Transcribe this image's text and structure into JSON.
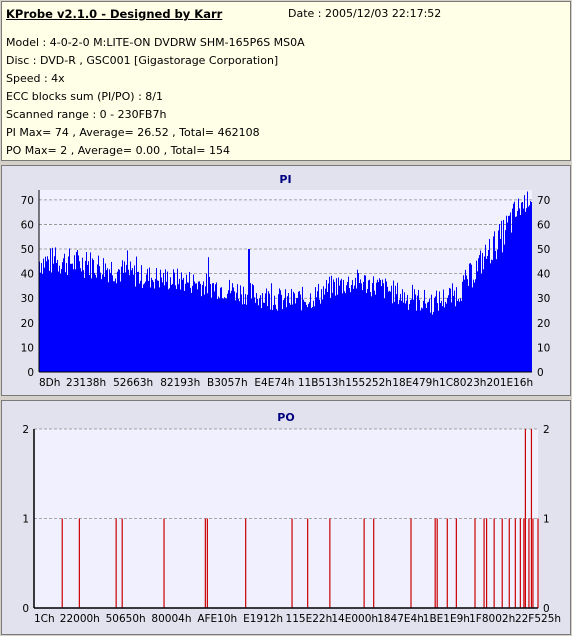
{
  "info": {
    "title": "KProbe v2.1.0 - Designed by Karr",
    "date": "Date : 2005/12/03 22:17:52",
    "lines": [
      "Model : 4-0-2-0 M:LITE-ON DVDRW SHM-165P6S MS0A",
      "Disc : DVD-R , GSC001 [Gigastorage Corporation]",
      "Speed : 4x",
      "ECC blocks sum (PI/PO) : 8/1",
      "Scanned range : 0 - 230FB7h",
      "PI Max= 74 , Average= 26.52 , Total= 462108",
      "PO Max= 2 , Average= 0.00 , Total= 154"
    ]
  },
  "chart_data": [
    {
      "type": "area",
      "title": "PI",
      "ylim": [
        0,
        74
      ],
      "yticks": [
        0,
        10,
        20,
        30,
        40,
        50,
        60,
        70
      ],
      "xticks": [
        "8Dh",
        "23138h",
        "52663h",
        "82193h",
        "B3057h",
        "E4E74h",
        "11B513h",
        "155252h",
        "18E479h",
        "1C8023h",
        "201E16h"
      ],
      "grid": true,
      "color": "#0000ff",
      "series": [
        {
          "x": [
            0,
            0.05,
            0.1,
            0.15,
            0.2,
            0.25,
            0.3,
            0.35,
            0.4,
            0.45,
            0.5,
            0.55,
            0.6,
            0.65,
            0.7,
            0.75,
            0.8,
            0.85,
            0.88,
            0.91,
            0.94,
            0.96,
            0.98,
            1.0
          ],
          "avg": [
            45,
            45,
            44,
            42,
            39,
            38,
            37,
            35,
            33,
            31,
            29,
            30,
            35,
            37,
            34,
            30,
            28,
            32,
            40,
            48,
            55,
            62,
            68,
            71
          ],
          "spread": [
            6,
            6,
            6,
            6,
            5,
            5,
            5,
            5,
            5,
            5,
            5,
            5,
            5,
            5,
            5,
            5,
            5,
            5,
            6,
            6,
            7,
            7,
            5,
            3
          ]
        }
      ]
    },
    {
      "type": "bar",
      "title": "PO",
      "ylim": [
        0,
        2
      ],
      "yticks": [
        0,
        1,
        2
      ],
      "xticks": [
        "1Ch",
        "22000h",
        "50650h",
        "80004h",
        "AFE10h",
        "E1912h",
        "115E22h",
        "14E000h",
        "1847E4h",
        "1BE1E9h",
        "1F8002h",
        "22F525h"
      ],
      "grid": true,
      "color": "#cc0000",
      "spikes": [
        {
          "x": 0.056,
          "v": 1
        },
        {
          "x": 0.09,
          "v": 1
        },
        {
          "x": 0.163,
          "v": 1
        },
        {
          "x": 0.175,
          "v": 1
        },
        {
          "x": 0.258,
          "v": 1
        },
        {
          "x": 0.34,
          "v": 1
        },
        {
          "x": 0.344,
          "v": 1
        },
        {
          "x": 0.42,
          "v": 1
        },
        {
          "x": 0.512,
          "v": 1
        },
        {
          "x": 0.543,
          "v": 1
        },
        {
          "x": 0.587,
          "v": 1
        },
        {
          "x": 0.655,
          "v": 1
        },
        {
          "x": 0.674,
          "v": 1
        },
        {
          "x": 0.748,
          "v": 1
        },
        {
          "x": 0.796,
          "v": 1
        },
        {
          "x": 0.8,
          "v": 1
        },
        {
          "x": 0.82,
          "v": 1
        },
        {
          "x": 0.838,
          "v": 1
        },
        {
          "x": 0.875,
          "v": 1
        },
        {
          "x": 0.893,
          "v": 1
        },
        {
          "x": 0.898,
          "v": 1
        },
        {
          "x": 0.913,
          "v": 1
        },
        {
          "x": 0.929,
          "v": 1
        },
        {
          "x": 0.943,
          "v": 1
        },
        {
          "x": 0.955,
          "v": 1
        },
        {
          "x": 0.965,
          "v": 1
        },
        {
          "x": 0.972,
          "v": 1
        },
        {
          "x": 0.975,
          "v": 2
        },
        {
          "x": 0.982,
          "v": 1
        },
        {
          "x": 0.987,
          "v": 2
        },
        {
          "x": 0.99,
          "v": 1
        },
        {
          "x": 1.0,
          "v": 1
        }
      ]
    }
  ]
}
